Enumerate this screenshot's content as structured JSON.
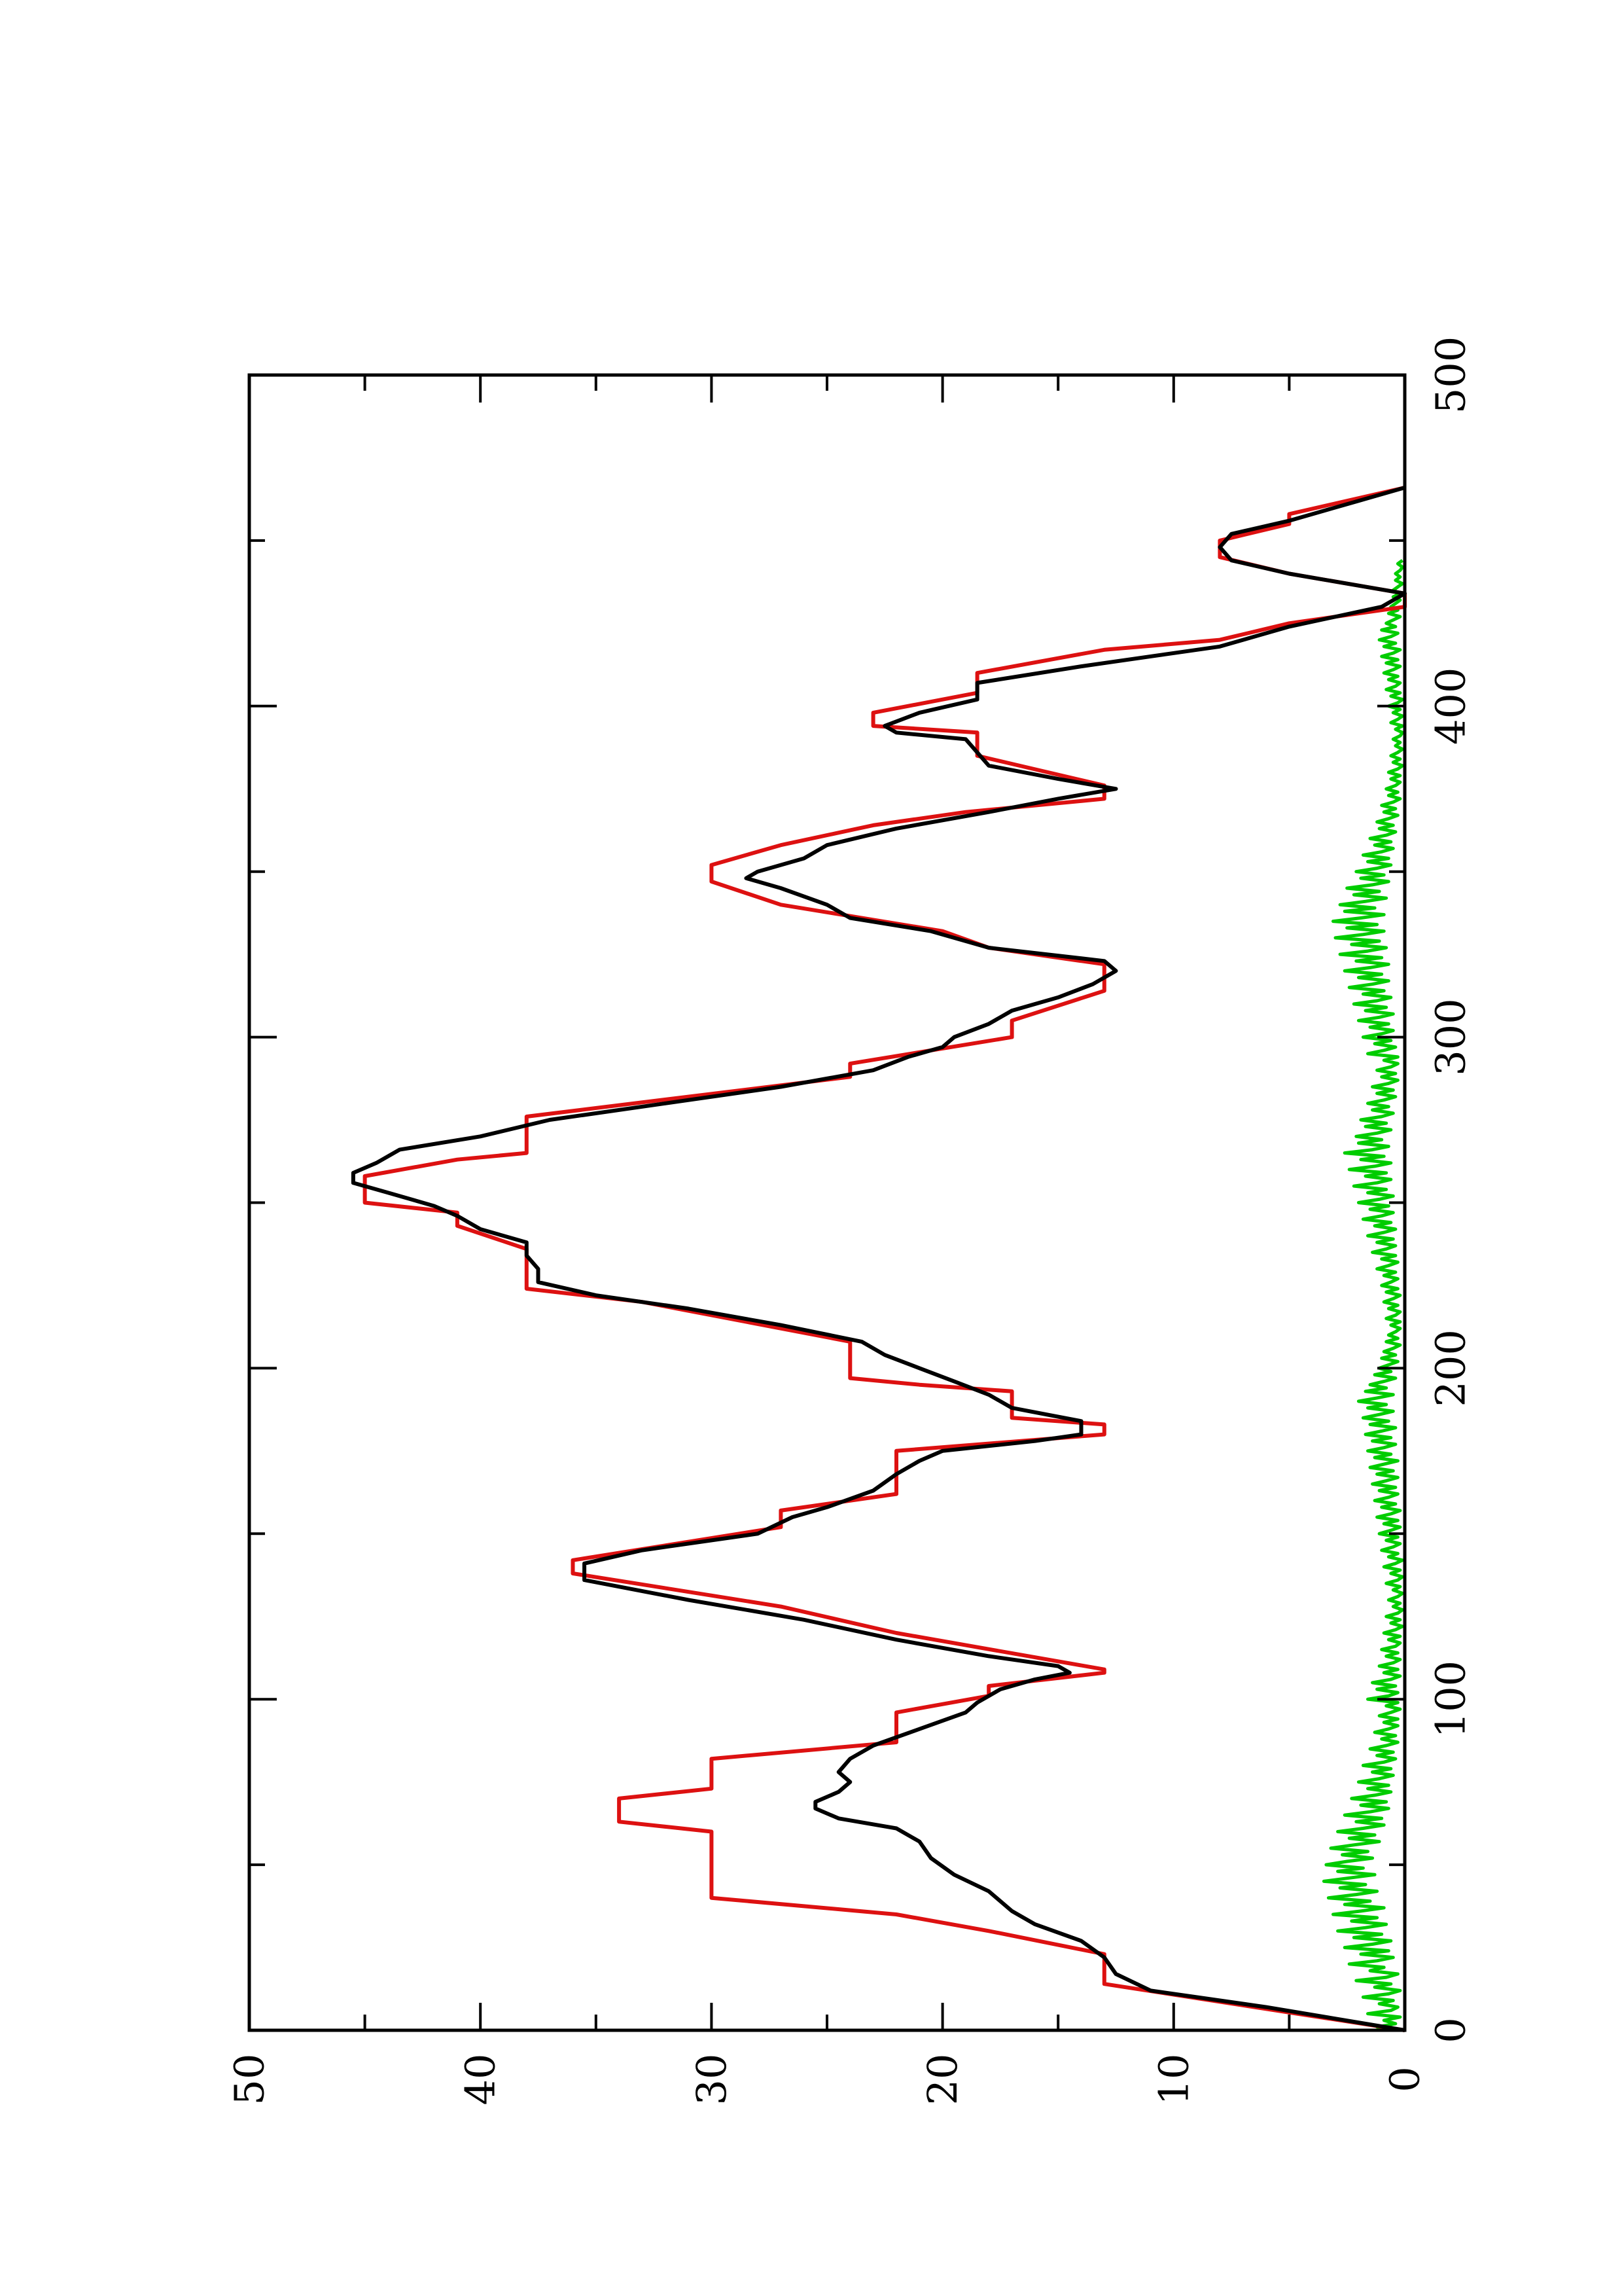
{
  "chart_data": {
    "type": "line",
    "orientation": "rotated-90-counterclockwise",
    "title": "",
    "xlabel": "",
    "ylabel": "",
    "xlim": [
      0,
      500
    ],
    "ylim": [
      0,
      50
    ],
    "x_ticks": [
      0,
      100,
      200,
      300,
      400,
      500
    ],
    "y_ticks": [
      0,
      10,
      20,
      30,
      40,
      50
    ],
    "x_tick_labels": [
      "0",
      "100",
      "200",
      "300",
      "400",
      "500"
    ],
    "y_tick_labels": [
      "0",
      "10",
      "20",
      "30",
      "40",
      "50"
    ],
    "grid": false,
    "legend": "none",
    "series": [
      {
        "color": "#dd1111",
        "style": "step",
        "points": [
          [
            0,
            0
          ],
          [
            14,
            13
          ],
          [
            23,
            13
          ],
          [
            30,
            18
          ],
          [
            35,
            22
          ],
          [
            40,
            30
          ],
          [
            60,
            30
          ],
          [
            63,
            34
          ],
          [
            70,
            34
          ],
          [
            73,
            30
          ],
          [
            82,
            30
          ],
          [
            87,
            22
          ],
          [
            96,
            22
          ],
          [
            101,
            18
          ],
          [
            104,
            18
          ],
          [
            108,
            13
          ],
          [
            109,
            13
          ],
          [
            120,
            22
          ],
          [
            128,
            27
          ],
          [
            138,
            36
          ],
          [
            142,
            36
          ],
          [
            152,
            27
          ],
          [
            157,
            27
          ],
          [
            162,
            22
          ],
          [
            175,
            22
          ],
          [
            180,
            13
          ],
          [
            183,
            13
          ],
          [
            185,
            17
          ],
          [
            193,
            17
          ],
          [
            195,
            21
          ],
          [
            197,
            24
          ],
          [
            208,
            24
          ],
          [
            220,
            33
          ],
          [
            224,
            38
          ],
          [
            236,
            38
          ],
          [
            243,
            41
          ],
          [
            247,
            41
          ],
          [
            250,
            45
          ],
          [
            253,
            45
          ],
          [
            258,
            45
          ],
          [
            263,
            41
          ],
          [
            265,
            38
          ],
          [
            276,
            38
          ],
          [
            288,
            24
          ],
          [
            292,
            24
          ],
          [
            300,
            17
          ],
          [
            305,
            17
          ],
          [
            314,
            13
          ],
          [
            317,
            13
          ],
          [
            322,
            13
          ],
          [
            327,
            18
          ],
          [
            332,
            20
          ],
          [
            340,
            27
          ],
          [
            347,
            30
          ],
          [
            352,
            30
          ],
          [
            358,
            27
          ],
          [
            364,
            23
          ],
          [
            368,
            19
          ],
          [
            372,
            13
          ],
          [
            376,
            13
          ],
          [
            385,
            18.5
          ],
          [
            392,
            18.5
          ],
          [
            394,
            23
          ],
          [
            398,
            23
          ],
          [
            404,
            18.5
          ],
          [
            410,
            18.5
          ],
          [
            417,
            13
          ],
          [
            420,
            8
          ],
          [
            425,
            5
          ],
          [
            430,
            0
          ],
          [
            434,
            0
          ],
          [
            440,
            5
          ],
          [
            445,
            8
          ],
          [
            450,
            8
          ],
          [
            455,
            5
          ],
          [
            458,
            5
          ],
          [
            466,
            0
          ]
        ]
      },
      {
        "color": "#000000",
        "style": "line",
        "points": [
          [
            0,
            0
          ],
          [
            7,
            6
          ],
          [
            12,
            11
          ],
          [
            17,
            12.5
          ],
          [
            22,
            13
          ],
          [
            27,
            14
          ],
          [
            32,
            16
          ],
          [
            36,
            17
          ],
          [
            42,
            18
          ],
          [
            47,
            19.5
          ],
          [
            52,
            20.5
          ],
          [
            57,
            21
          ],
          [
            61,
            22
          ],
          [
            64,
            24.5
          ],
          [
            67,
            25.5
          ],
          [
            69,
            25.5
          ],
          [
            72,
            24.5
          ],
          [
            75,
            24
          ],
          [
            78,
            24.5
          ],
          [
            82,
            24
          ],
          [
            86,
            23
          ],
          [
            91,
            21
          ],
          [
            96,
            19
          ],
          [
            99,
            18.5
          ],
          [
            103,
            17.5
          ],
          [
            106,
            16
          ],
          [
            108,
            14.5
          ],
          [
            110,
            15
          ],
          [
            113,
            18
          ],
          [
            118,
            22
          ],
          [
            124,
            26
          ],
          [
            130,
            31
          ],
          [
            136,
            35.5
          ],
          [
            141,
            35.5
          ],
          [
            145,
            33
          ],
          [
            150,
            28
          ],
          [
            155,
            26.5
          ],
          [
            158,
            25
          ],
          [
            163,
            23
          ],
          [
            168,
            22
          ],
          [
            172,
            21
          ],
          [
            175,
            20
          ],
          [
            178,
            16
          ],
          [
            180,
            14
          ],
          [
            184,
            14
          ],
          [
            188,
            17
          ],
          [
            192,
            18
          ],
          [
            196,
            19.5
          ],
          [
            200,
            21
          ],
          [
            204,
            22.5
          ],
          [
            208,
            23.5
          ],
          [
            213,
            27
          ],
          [
            218,
            31
          ],
          [
            222,
            35
          ],
          [
            226,
            37.5
          ],
          [
            230,
            37.5
          ],
          [
            234,
            38
          ],
          [
            238,
            38
          ],
          [
            242,
            40
          ],
          [
            246,
            41
          ],
          [
            249,
            42
          ],
          [
            253,
            44
          ],
          [
            256,
            45.5
          ],
          [
            259,
            45.5
          ],
          [
            262,
            44.5
          ],
          [
            266,
            43.5
          ],
          [
            270,
            40
          ],
          [
            275,
            37
          ],
          [
            280,
            32
          ],
          [
            285,
            27
          ],
          [
            290,
            23
          ],
          [
            294,
            21.5
          ],
          [
            297,
            20
          ],
          [
            300,
            19.5
          ],
          [
            304,
            18
          ],
          [
            308,
            17
          ],
          [
            312,
            15
          ],
          [
            316,
            13.5
          ],
          [
            320,
            12.5
          ],
          [
            323,
            13
          ],
          [
            327,
            18
          ],
          [
            332,
            20.5
          ],
          [
            336,
            24
          ],
          [
            340,
            25
          ],
          [
            345,
            27
          ],
          [
            348,
            28.5
          ],
          [
            350,
            28
          ],
          [
            354,
            26
          ],
          [
            358,
            25
          ],
          [
            363,
            22
          ],
          [
            368,
            18
          ],
          [
            372,
            15
          ],
          [
            375,
            12.5
          ],
          [
            378,
            15
          ],
          [
            382,
            18
          ],
          [
            386,
            18.5
          ],
          [
            390,
            19
          ],
          [
            392,
            22
          ],
          [
            394,
            22.5
          ],
          [
            398,
            21
          ],
          [
            402,
            18.5
          ],
          [
            407,
            18.5
          ],
          [
            412,
            14
          ],
          [
            418,
            8
          ],
          [
            424,
            5
          ],
          [
            430,
            1
          ],
          [
            434,
            0
          ],
          [
            440,
            5
          ],
          [
            444,
            7.5
          ],
          [
            448,
            8
          ],
          [
            452,
            7.5
          ],
          [
            456,
            5
          ],
          [
            462,
            2
          ],
          [
            466,
            0
          ]
        ]
      },
      {
        "color": "#00cc00",
        "style": "line",
        "sampling_step": 1,
        "y_min": 0,
        "y_max": 3.6,
        "note_values": "noisy low-amplitude fluctuation series between 0 and ~3.6 across x = 0 to 470",
        "values": [
          0.1,
          1.2,
          0.4,
          0.9,
          0.2,
          1.6,
          0.6,
          0.3,
          1.1,
          0.5,
          1.8,
          0.7,
          0.2,
          1.3,
          0.6,
          2.1,
          0.8,
          0.3,
          1.5,
          0.9,
          2.4,
          1.2,
          0.5,
          1.9,
          0.7,
          2.6,
          1.4,
          0.6,
          2.2,
          1.0,
          2.9,
          1.7,
          0.8,
          2.3,
          1.2,
          3.1,
          1.9,
          0.9,
          2.6,
          1.5,
          3.3,
          2.1,
          1.2,
          2.8,
          1.7,
          3.5,
          2.4,
          1.3,
          2.9,
          1.8,
          3.4,
          2.5,
          1.4,
          2.7,
          1.6,
          3.2,
          2.2,
          1.1,
          2.4,
          1.3,
          2.9,
          1.8,
          0.9,
          2.1,
          1.0,
          2.6,
          1.5,
          0.7,
          1.9,
          0.8,
          2.3,
          1.3,
          0.6,
          1.6,
          0.7,
          2.0,
          1.1,
          0.5,
          1.4,
          0.6,
          1.8,
          0.9,
          0.4,
          1.2,
          0.5,
          1.5,
          0.8,
          0.3,
          1.0,
          0.4,
          1.3,
          0.7,
          0.3,
          0.9,
          0.3,
          1.1,
          0.6,
          0.2,
          0.8,
          0.3,
          1.6,
          0.7,
          0.3,
          1.2,
          0.4,
          1.4,
          0.6,
          0.2,
          0.9,
          0.3,
          1.1,
          0.5,
          0.2,
          0.8,
          0.3,
          1.0,
          0.4,
          0.2,
          0.7,
          0.2,
          0.9,
          0.4,
          0.1,
          0.6,
          0.2,
          0.8,
          0.3,
          0.1,
          0.5,
          0.2,
          0.7,
          0.3,
          0.1,
          0.5,
          0.2,
          0.8,
          0.3,
          0.1,
          0.6,
          0.2,
          0.9,
          0.4,
          0.1,
          0.7,
          0.3,
          1.0,
          0.5,
          0.2,
          0.8,
          0.3,
          1.1,
          0.6,
          0.2,
          0.9,
          0.3,
          1.2,
          0.6,
          0.2,
          1.0,
          0.4,
          1.3,
          0.7,
          0.3,
          1.1,
          0.4,
          1.4,
          0.8,
          0.3,
          1.2,
          0.5,
          1.5,
          0.9,
          0.3,
          1.3,
          0.6,
          1.6,
          0.9,
          0.4,
          1.4,
          0.6,
          1.7,
          1.0,
          0.4,
          1.5,
          0.7,
          1.8,
          1.1,
          0.5,
          1.6,
          0.8,
          2.0,
          1.2,
          0.5,
          1.7,
          0.8,
          1.5,
          0.9,
          0.4,
          1.3,
          0.6,
          1.1,
          0.7,
          0.3,
          1.0,
          0.4,
          0.9,
          0.5,
          0.2,
          0.8,
          0.3,
          0.7,
          0.4,
          0.2,
          0.6,
          0.2,
          0.8,
          0.4,
          0.2,
          0.7,
          0.3,
          0.9,
          0.5,
          0.2,
          0.8,
          0.3,
          1.0,
          0.6,
          0.3,
          0.9,
          0.4,
          1.2,
          0.7,
          0.3,
          1.0,
          0.4,
          1.4,
          0.8,
          0.4,
          1.2,
          0.5,
          1.6,
          0.9,
          0.4,
          1.3,
          0.6,
          1.8,
          1.0,
          0.5,
          1.5,
          0.7,
          2.0,
          1.1,
          0.5,
          1.6,
          0.8,
          2.2,
          1.2,
          0.6,
          1.7,
          0.8,
          2.4,
          1.3,
          0.6,
          1.9,
          0.9,
          2.6,
          1.4,
          0.7,
          2.0,
          1.0,
          2.1,
          1.2,
          0.6,
          1.7,
          0.8,
          1.9,
          1.0,
          0.5,
          1.4,
          0.7,
          1.6,
          0.9,
          0.4,
          1.2,
          0.5,
          1.4,
          0.7,
          0.3,
          1.0,
          0.4,
          1.2,
          0.6,
          0.3,
          0.9,
          0.3,
          1.6,
          0.9,
          0.4,
          1.3,
          0.6,
          1.8,
          1.0,
          0.5,
          1.5,
          0.7,
          2.0,
          1.1,
          0.5,
          1.7,
          0.8,
          2.2,
          1.2,
          0.6,
          1.8,
          0.9,
          2.4,
          1.4,
          0.7,
          2.0,
          1.0,
          2.6,
          1.5,
          0.7,
          2.1,
          1.0,
          2.8,
          1.6,
          0.8,
          2.3,
          1.1,
          3.0,
          1.8,
          0.9,
          2.5,
          1.2,
          3.1,
          1.9,
          0.9,
          2.6,
          1.3,
          2.8,
          1.7,
          0.8,
          2.2,
          1.1,
          2.5,
          1.4,
          0.7,
          1.9,
          0.9,
          2.1,
          1.2,
          0.6,
          1.6,
          0.7,
          1.8,
          1.0,
          0.5,
          1.3,
          0.6,
          1.5,
          0.8,
          0.4,
          1.1,
          0.5,
          1.2,
          0.7,
          0.3,
          0.9,
          0.4,
          1.0,
          0.5,
          0.2,
          0.7,
          0.3,
          0.8,
          0.4,
          0.2,
          0.6,
          0.2,
          0.7,
          0.3,
          0.1,
          0.5,
          0.2,
          0.6,
          0.3,
          0.1,
          0.4,
          0.2,
          0.5,
          0.2,
          0.1,
          0.4,
          0.1,
          0.6,
          0.3,
          0.1,
          0.5,
          0.2,
          0.7,
          0.3,
          0.1,
          0.6,
          0.2,
          0.8,
          0.4,
          0.2,
          0.7,
          0.3,
          0.9,
          0.5,
          0.2,
          0.8,
          0.3,
          1.0,
          0.5,
          0.2,
          0.9,
          0.4,
          1.1,
          0.6,
          0.3,
          1.0,
          0.4,
          0.8,
          0.5,
          0.2,
          0.7,
          0.3,
          0.6,
          0.4,
          0.2,
          0.5,
          0.2,
          0.5,
          0.3,
          0.1,
          0.4,
          0.2,
          0.4,
          0.2,
          0.1,
          0.3,
          0.1
        ]
      }
    ]
  }
}
